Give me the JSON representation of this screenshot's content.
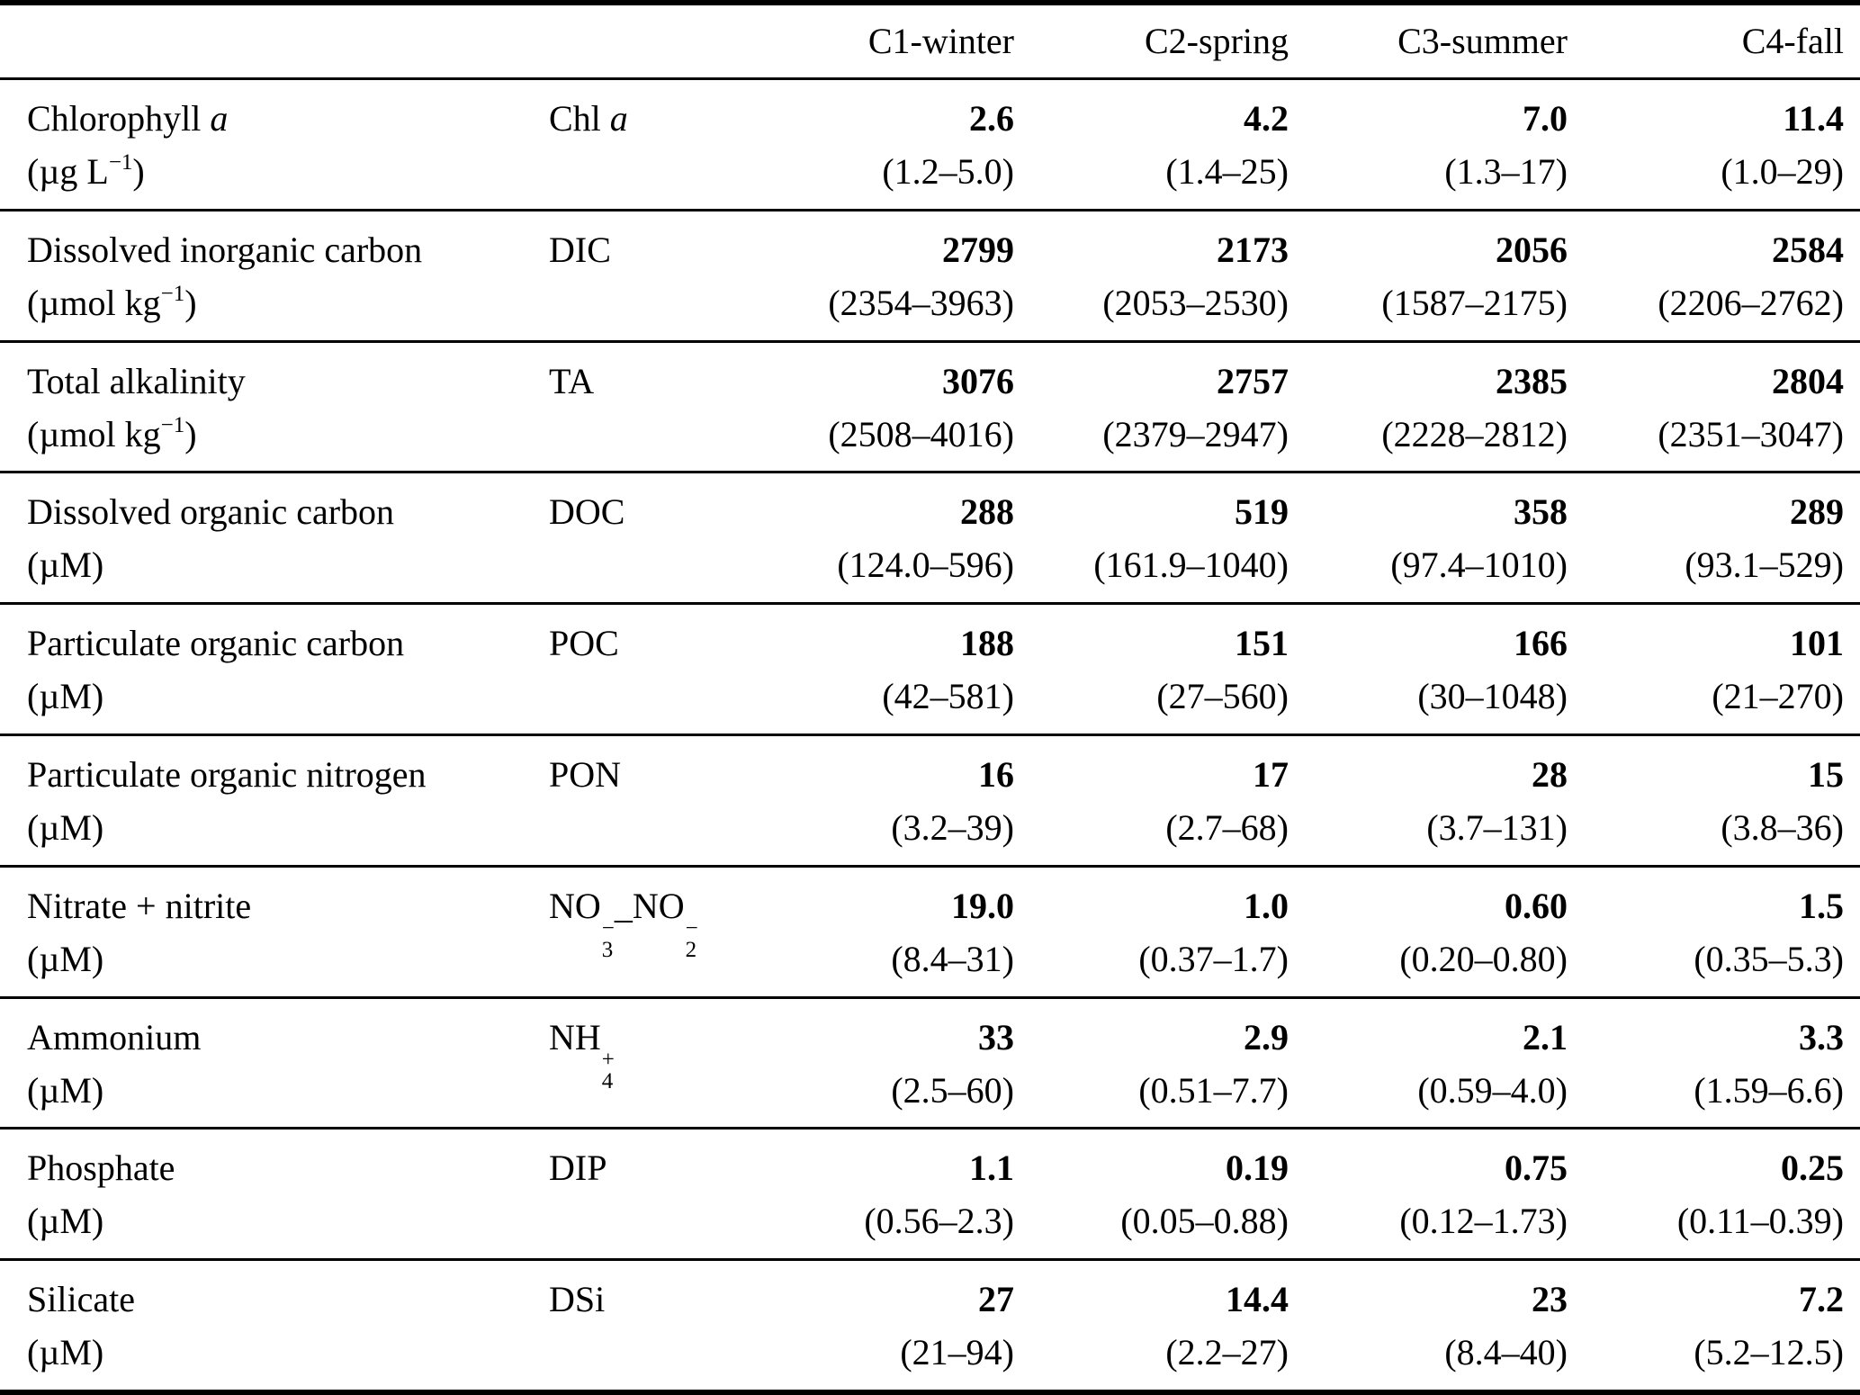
{
  "header": {
    "columns": [
      "C1-winter",
      "C2-spring",
      "C3-summer",
      "C4-fall"
    ]
  },
  "rows": [
    {
      "name": [
        {
          "t": "Chlorophyll "
        },
        {
          "t": "a",
          "s": "i"
        }
      ],
      "unit": [
        {
          "t": "(µg L"
        },
        {
          "t": "−1",
          "s": "sup"
        },
        {
          "t": ")"
        }
      ],
      "symbol": [
        {
          "t": "Chl "
        },
        {
          "t": "a",
          "s": "i"
        }
      ],
      "values": [
        {
          "mean": "2.6",
          "range": "(1.2–5.0)"
        },
        {
          "mean": "4.2",
          "range": "(1.4–25)"
        },
        {
          "mean": "7.0",
          "range": "(1.3–17)"
        },
        {
          "mean": "11.4",
          "range": "(1.0–29)"
        }
      ]
    },
    {
      "name": [
        {
          "t": "Dissolved inorganic carbon"
        }
      ],
      "unit": [
        {
          "t": "(µmol kg"
        },
        {
          "t": "−1",
          "s": "sup"
        },
        {
          "t": ")"
        }
      ],
      "symbol": [
        {
          "t": "DIC"
        }
      ],
      "values": [
        {
          "mean": "2799",
          "range": "(2354–3963)"
        },
        {
          "mean": "2173",
          "range": "(2053–2530)"
        },
        {
          "mean": "2056",
          "range": "(1587–2175)"
        },
        {
          "mean": "2584",
          "range": "(2206–2762)"
        }
      ]
    },
    {
      "name": [
        {
          "t": "Total alkalinity"
        }
      ],
      "unit": [
        {
          "t": "(µmol kg"
        },
        {
          "t": "−1",
          "s": "sup"
        },
        {
          "t": ")"
        }
      ],
      "symbol": [
        {
          "t": "TA"
        }
      ],
      "values": [
        {
          "mean": "3076",
          "range": "(2508–4016)"
        },
        {
          "mean": "2757",
          "range": "(2379–2947)"
        },
        {
          "mean": "2385",
          "range": "(2228–2812)"
        },
        {
          "mean": "2804",
          "range": "(2351–3047)"
        }
      ]
    },
    {
      "name": [
        {
          "t": "Dissolved organic carbon"
        }
      ],
      "unit": [
        {
          "t": "(µM)"
        }
      ],
      "symbol": [
        {
          "t": "DOC"
        }
      ],
      "values": [
        {
          "mean": "288",
          "range": "(124.0–596)"
        },
        {
          "mean": "519",
          "range": "(161.9–1040)"
        },
        {
          "mean": "358",
          "range": "(97.4–1010)"
        },
        {
          "mean": "289",
          "range": "(93.1–529)"
        }
      ]
    },
    {
      "name": [
        {
          "t": "Particulate organic carbon"
        }
      ],
      "unit": [
        {
          "t": "(µM)"
        }
      ],
      "symbol": [
        {
          "t": "POC"
        }
      ],
      "values": [
        {
          "mean": "188",
          "range": "(42–581)"
        },
        {
          "mean": "151",
          "range": "(27–560)"
        },
        {
          "mean": "166",
          "range": "(30–1048)"
        },
        {
          "mean": "101",
          "range": "(21–270)"
        }
      ]
    },
    {
      "name": [
        {
          "t": "Particulate organic nitrogen"
        }
      ],
      "unit": [
        {
          "t": "(µM)"
        }
      ],
      "symbol": [
        {
          "t": "PON"
        }
      ],
      "values": [
        {
          "mean": "16",
          "range": "(3.2–39)"
        },
        {
          "mean": "17",
          "range": "(2.7–68)"
        },
        {
          "mean": "28",
          "range": "(3.7–131)"
        },
        {
          "mean": "15",
          "range": "(3.8–36)"
        }
      ]
    },
    {
      "name": [
        {
          "t": "Nitrate + nitrite"
        }
      ],
      "unit": [
        {
          "t": "(µM)"
        }
      ],
      "symbol": [
        {
          "t": "NO"
        },
        {
          "sup": "−",
          "sub": "3"
        },
        {
          "t": "_"
        },
        {
          "t": "NO"
        },
        {
          "sup": "−",
          "sub": "2"
        }
      ],
      "values": [
        {
          "mean": "19.0",
          "range": "(8.4–31)"
        },
        {
          "mean": "1.0",
          "range": "(0.37–1.7)"
        },
        {
          "mean": "0.60",
          "range": "(0.20–0.80)"
        },
        {
          "mean": "1.5",
          "range": "(0.35–5.3)"
        }
      ]
    },
    {
      "name": [
        {
          "t": "Ammonium"
        }
      ],
      "unit": [
        {
          "t": "(µM)"
        }
      ],
      "symbol": [
        {
          "t": "NH"
        },
        {
          "sup": "+",
          "sub": "4"
        }
      ],
      "values": [
        {
          "mean": "33",
          "range": "(2.5–60)"
        },
        {
          "mean": "2.9",
          "range": "(0.51–7.7)"
        },
        {
          "mean": "2.1",
          "range": "(0.59–4.0)"
        },
        {
          "mean": "3.3",
          "range": "(1.59–6.6)"
        }
      ]
    },
    {
      "name": [
        {
          "t": "Phosphate"
        }
      ],
      "unit": [
        {
          "t": "(µM)"
        }
      ],
      "symbol": [
        {
          "t": "DIP"
        }
      ],
      "values": [
        {
          "mean": "1.1",
          "range": "(0.56–2.3)"
        },
        {
          "mean": "0.19",
          "range": "(0.05–0.88)"
        },
        {
          "mean": "0.75",
          "range": "(0.12–1.73)"
        },
        {
          "mean": "0.25",
          "range": "(0.11–0.39)"
        }
      ]
    },
    {
      "name": [
        {
          "t": "Silicate"
        }
      ],
      "unit": [
        {
          "t": "(µM)"
        }
      ],
      "symbol": [
        {
          "t": "DSi"
        }
      ],
      "values": [
        {
          "mean": "27",
          "range": "(21–94)"
        },
        {
          "mean": "14.4",
          "range": "(2.2–27)"
        },
        {
          "mean": "23",
          "range": "(8.4–40)"
        },
        {
          "mean": "7.2",
          "range": "(5.2–12.5)"
        }
      ]
    }
  ]
}
